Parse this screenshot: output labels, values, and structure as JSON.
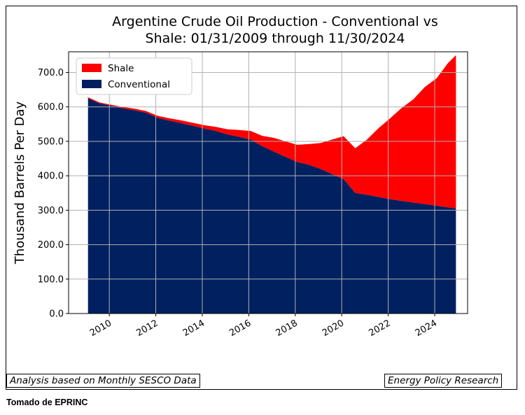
{
  "chart_data": {
    "type": "area",
    "title": "Argentine Crude Oil Production - Conventional vs Shale: 01/31/2009 through 11/30/2024",
    "title_lines": [
      "Argentine Crude Oil Production - Conventional vs",
      "Shale: 01/31/2009 through 11/30/2024"
    ],
    "xlabel": "",
    "ylabel": "Thousand Barrels Per Day",
    "stacked": true,
    "x_range": [
      "2009-01-31",
      "2024-11-30"
    ],
    "ylim": [
      0,
      760
    ],
    "x_ticks": [
      "2010",
      "2012",
      "2014",
      "2016",
      "2018",
      "2020",
      "2022",
      "2024"
    ],
    "y_ticks": [
      "0.0",
      "100.0",
      "200.0",
      "300.0",
      "400.0",
      "500.0",
      "600.0",
      "700.0"
    ],
    "grid": true,
    "legend_position": "top-left",
    "x": [
      "2009-01-31",
      "2009-07-31",
      "2010-01-31",
      "2010-07-31",
      "2011-01-31",
      "2011-07-31",
      "2012-01-31",
      "2012-07-31",
      "2013-01-31",
      "2013-07-31",
      "2014-01-31",
      "2014-07-31",
      "2015-01-31",
      "2015-07-31",
      "2016-01-31",
      "2016-07-31",
      "2017-01-31",
      "2017-07-31",
      "2018-01-31",
      "2018-07-31",
      "2019-01-31",
      "2019-07-31",
      "2020-01-31",
      "2020-07-31",
      "2021-01-31",
      "2021-07-31",
      "2022-01-31",
      "2022-07-31",
      "2023-01-31",
      "2023-07-31",
      "2024-01-31",
      "2024-07-31",
      "2024-11-30"
    ],
    "series": [
      {
        "name": "Conventional",
        "color": "#002060",
        "values": [
          625,
          610,
          603,
          596,
          590,
          583,
          568,
          560,
          553,
          545,
          537,
          530,
          520,
          513,
          505,
          486,
          470,
          455,
          440,
          432,
          420,
          405,
          390,
          350,
          345,
          338,
          332,
          327,
          322,
          318,
          313,
          308,
          305
        ]
      },
      {
        "name": "Shale",
        "color": "#ff0000",
        "values": [
          3,
          3,
          3,
          4,
          5,
          5,
          6,
          7,
          8,
          9,
          10,
          12,
          15,
          20,
          25,
          30,
          40,
          45,
          50,
          60,
          75,
          100,
          125,
          130,
          160,
          200,
          235,
          270,
          300,
          340,
          370,
          420,
          445
        ]
      }
    ]
  },
  "notes": {
    "left": "Analysis based on Monthly SESCO Data",
    "right": "Energy Policy Research"
  },
  "credit": "Tomado de EPRINC"
}
